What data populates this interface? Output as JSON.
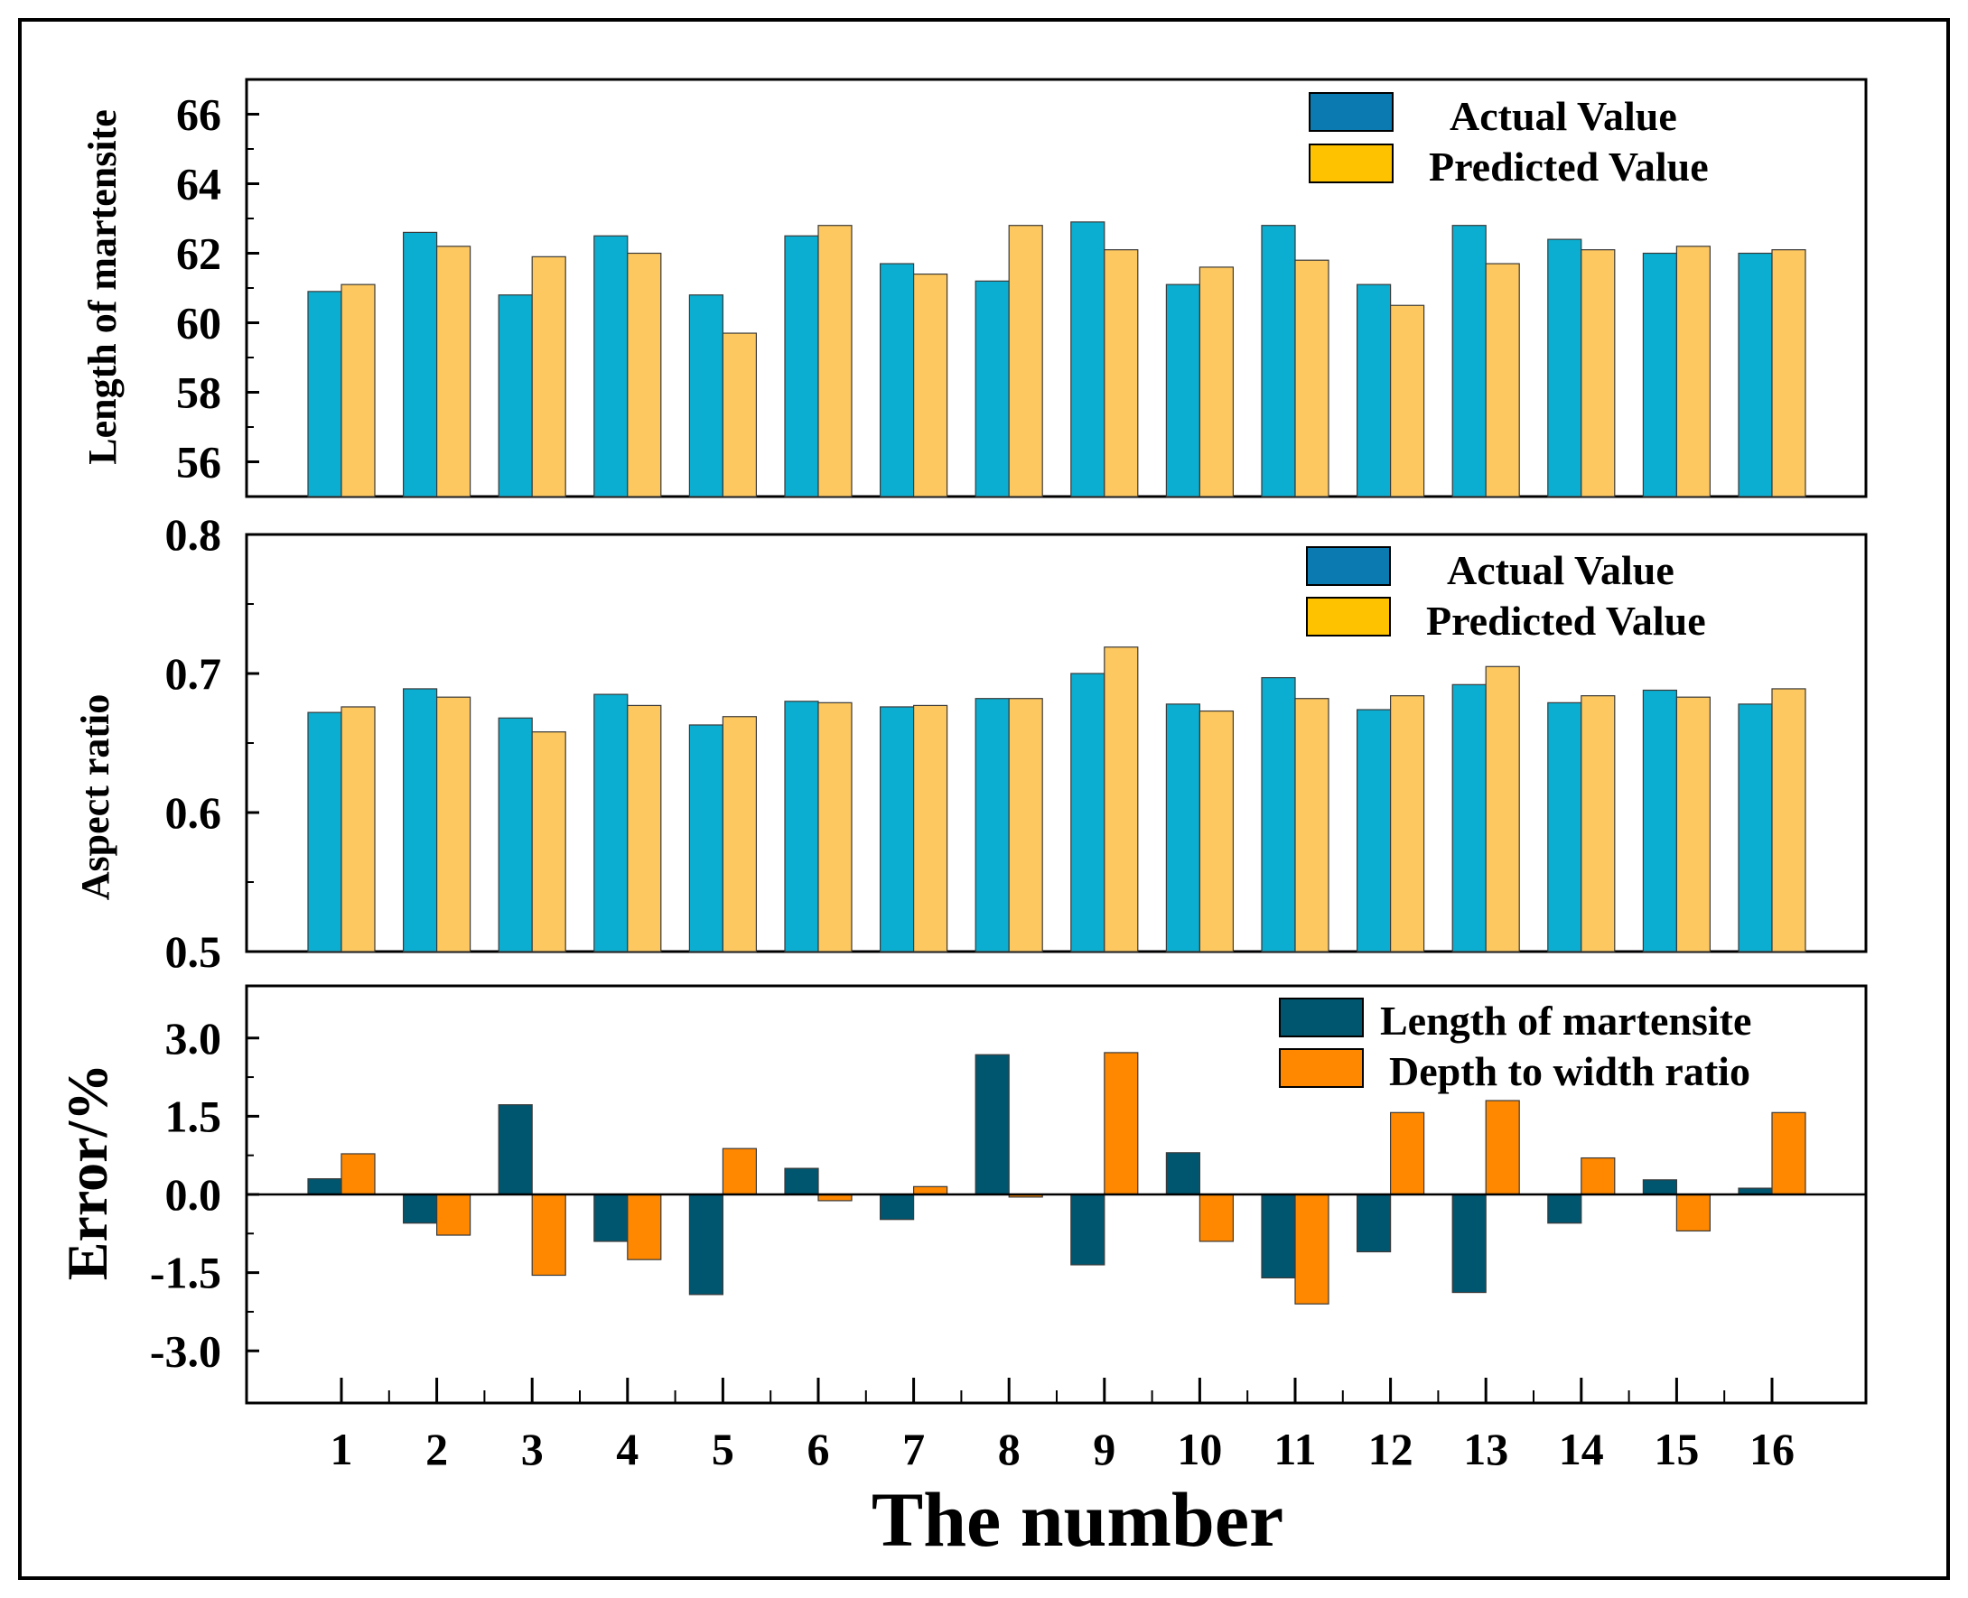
{
  "chart_data": [
    {
      "type": "bar",
      "id": "length",
      "ylabel": "Length of martensite",
      "ylim": [
        55,
        67
      ],
      "yticks": [
        56,
        58,
        60,
        62,
        64,
        66
      ],
      "ytick_labels": [
        "56",
        "58",
        "60",
        "62",
        "64",
        "66"
      ],
      "categories": [
        "1",
        "2",
        "3",
        "4",
        "5",
        "6",
        "7",
        "8",
        "9",
        "10",
        "11",
        "12",
        "13",
        "14",
        "15",
        "16"
      ],
      "series": [
        {
          "name": "Actual Value",
          "legend_color": "#0a7ab0",
          "bar_color": "#0baed0",
          "values": [
            60.9,
            62.6,
            60.8,
            62.5,
            60.8,
            62.5,
            61.7,
            61.2,
            62.9,
            61.1,
            62.8,
            61.1,
            62.8,
            62.4,
            62.0,
            62.0
          ]
        },
        {
          "name": "Predicted Value",
          "legend_color": "#ffc200",
          "bar_color": "#fdc85f",
          "values": [
            61.1,
            62.2,
            61.9,
            62.0,
            59.7,
            62.8,
            61.4,
            62.8,
            62.1,
            61.6,
            61.8,
            60.5,
            61.7,
            62.1,
            62.2,
            62.1
          ]
        }
      ]
    },
    {
      "type": "bar",
      "id": "aspect",
      "ylabel": "Aspect ratio",
      "ylim": [
        0.5,
        0.8
      ],
      "yticks": [
        0.5,
        0.6,
        0.7,
        0.8
      ],
      "ytick_labels": [
        "0.5",
        "0.6",
        "0.7",
        "0.8"
      ],
      "categories": [
        "1",
        "2",
        "3",
        "4",
        "5",
        "6",
        "7",
        "8",
        "9",
        "10",
        "11",
        "12",
        "13",
        "14",
        "15",
        "16"
      ],
      "series": [
        {
          "name": "Actual Value",
          "legend_color": "#0a7ab0",
          "bar_color": "#0baed0",
          "values": [
            0.672,
            0.689,
            0.668,
            0.685,
            0.663,
            0.68,
            0.676,
            0.682,
            0.7,
            0.678,
            0.697,
            0.674,
            0.692,
            0.679,
            0.688,
            0.678
          ]
        },
        {
          "name": "Predicted Value",
          "legend_color": "#ffc200",
          "bar_color": "#fdc85f",
          "values": [
            0.676,
            0.683,
            0.658,
            0.677,
            0.669,
            0.679,
            0.677,
            0.682,
            0.719,
            0.673,
            0.682,
            0.684,
            0.705,
            0.684,
            0.683,
            0.689
          ]
        }
      ]
    },
    {
      "type": "bar",
      "id": "error",
      "ylabel": "Error/%",
      "ylim": [
        -4.0,
        4.0
      ],
      "yticks": [
        -3.0,
        -1.5,
        0.0,
        1.5,
        3.0
      ],
      "ytick_labels": [
        "-3.0",
        "-1.5",
        "0.0",
        "1.5",
        "3.0"
      ],
      "categories": [
        "1",
        "2",
        "3",
        "4",
        "5",
        "6",
        "7",
        "8",
        "9",
        "10",
        "11",
        "12",
        "13",
        "14",
        "15",
        "16"
      ],
      "xlabel": "The number",
      "series": [
        {
          "name": "Length of martensite",
          "legend_color": "#00566f",
          "bar_color": "#00566f",
          "values": [
            0.3,
            -0.55,
            1.72,
            -0.9,
            -1.92,
            0.5,
            -0.48,
            2.68,
            -1.35,
            0.8,
            -1.6,
            -1.1,
            -1.88,
            -0.55,
            0.28,
            0.12
          ]
        },
        {
          "name": "Depth to width ratio",
          "legend_color": "#ff8800",
          "bar_color": "#ff8800",
          "values": [
            0.78,
            -0.78,
            -1.55,
            -1.25,
            0.88,
            -0.12,
            0.15,
            -0.05,
            2.72,
            -0.9,
            -2.1,
            1.57,
            1.8,
            0.7,
            -0.7,
            1.57
          ]
        }
      ]
    }
  ]
}
